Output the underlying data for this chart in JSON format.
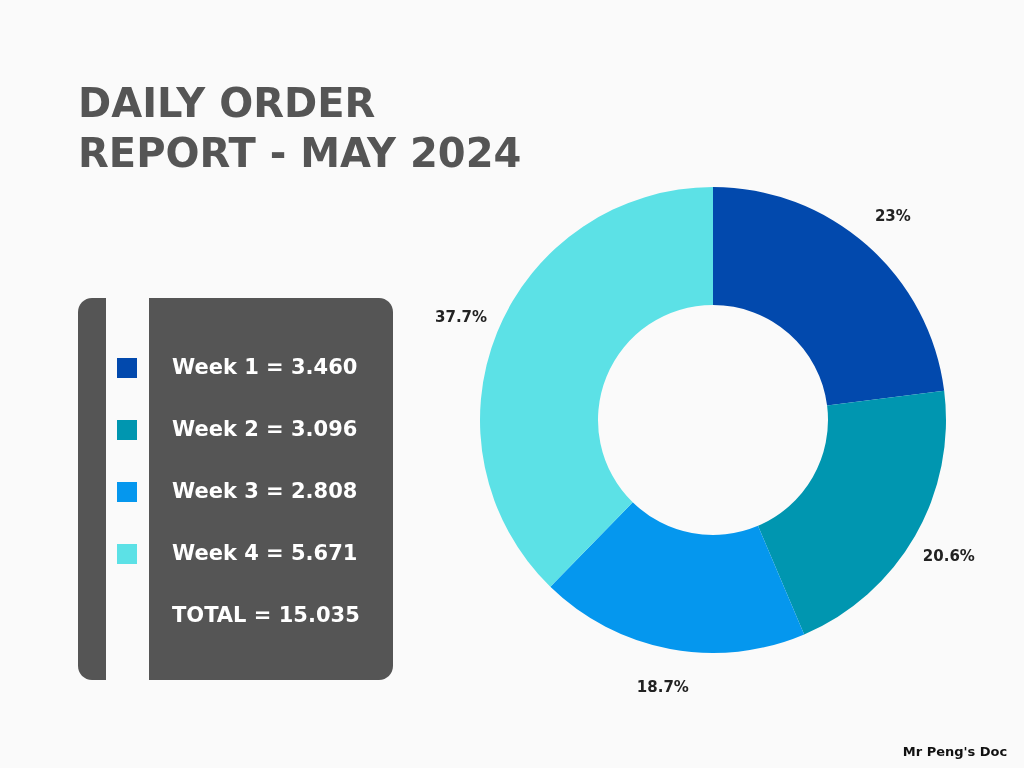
{
  "chart_data": {
    "type": "donut",
    "title": "DAILY ORDER\nREPORT - MAY 2024",
    "categories": [
      "Week 1 = 3.460",
      "Week 2 = 3.096",
      "Week 3 = 2.808",
      "Week 4 = 5.671"
    ],
    "values": [
      23,
      20.6,
      18.7,
      37.7
    ],
    "value_labels": [
      "23%",
      "20.6%",
      "18.7%",
      "37.7%"
    ],
    "colors": [
      "#0249ad",
      "#0096b0",
      "#0597ee",
      "#5ce1e6"
    ],
    "legend": "left",
    "annotations": [
      "TOTAL = 15.035",
      "Mr Peng's Doc"
    ]
  }
}
